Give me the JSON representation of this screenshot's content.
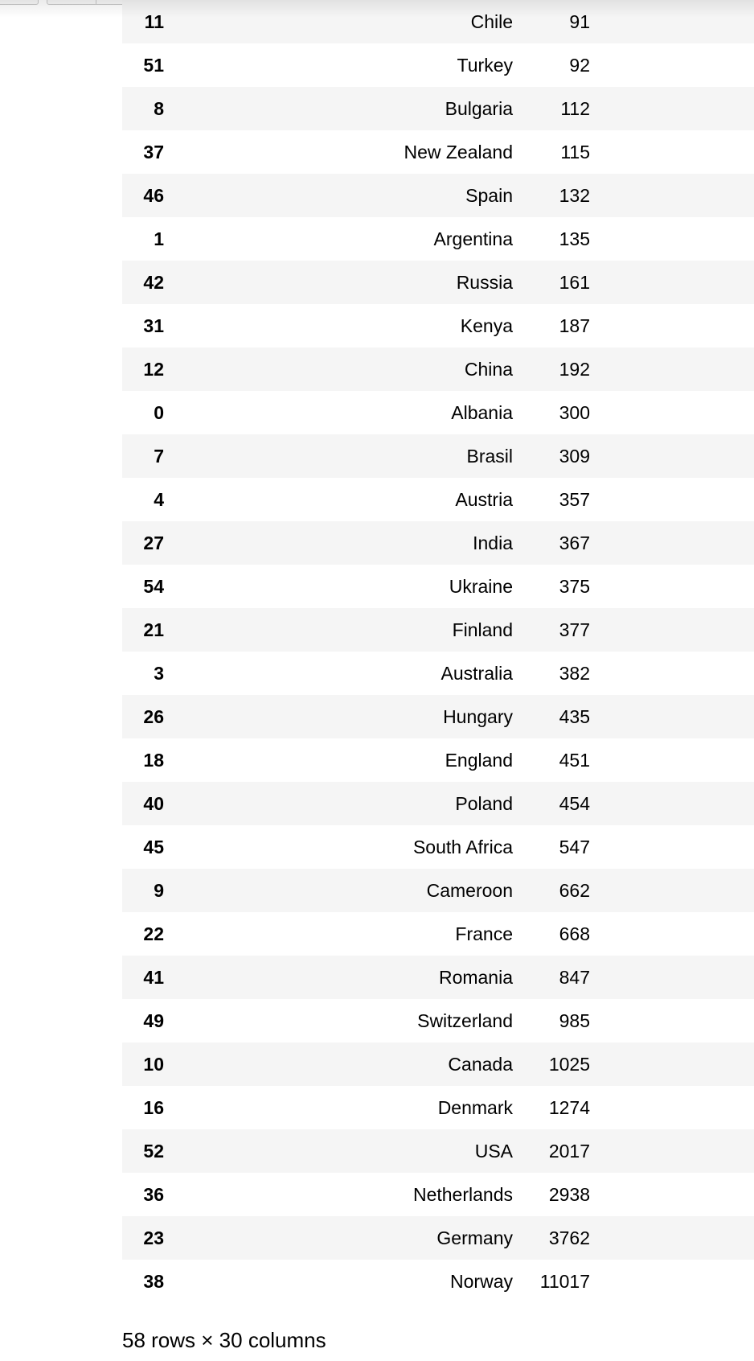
{
  "table": {
    "rows": [
      {
        "index": "11",
        "country": "Chile",
        "value": "91"
      },
      {
        "index": "51",
        "country": "Turkey",
        "value": "92"
      },
      {
        "index": "8",
        "country": "Bulgaria",
        "value": "112"
      },
      {
        "index": "37",
        "country": "New Zealand",
        "value": "115"
      },
      {
        "index": "46",
        "country": "Spain",
        "value": "132"
      },
      {
        "index": "1",
        "country": "Argentina",
        "value": "135"
      },
      {
        "index": "42",
        "country": "Russia",
        "value": "161"
      },
      {
        "index": "31",
        "country": "Kenya",
        "value": "187"
      },
      {
        "index": "12",
        "country": "China",
        "value": "192"
      },
      {
        "index": "0",
        "country": "Albania",
        "value": "300"
      },
      {
        "index": "7",
        "country": "Brasil",
        "value": "309"
      },
      {
        "index": "4",
        "country": "Austria",
        "value": "357"
      },
      {
        "index": "27",
        "country": "India",
        "value": "367"
      },
      {
        "index": "54",
        "country": "Ukraine",
        "value": "375"
      },
      {
        "index": "21",
        "country": "Finland",
        "value": "377"
      },
      {
        "index": "3",
        "country": "Australia",
        "value": "382"
      },
      {
        "index": "26",
        "country": "Hungary",
        "value": "435"
      },
      {
        "index": "18",
        "country": "England",
        "value": "451"
      },
      {
        "index": "40",
        "country": "Poland",
        "value": "454"
      },
      {
        "index": "45",
        "country": "South Africa",
        "value": "547"
      },
      {
        "index": "9",
        "country": "Cameroon",
        "value": "662"
      },
      {
        "index": "22",
        "country": "France",
        "value": "668"
      },
      {
        "index": "41",
        "country": "Romania",
        "value": "847"
      },
      {
        "index": "49",
        "country": "Switzerland",
        "value": "985"
      },
      {
        "index": "10",
        "country": "Canada",
        "value": "1025"
      },
      {
        "index": "16",
        "country": "Denmark",
        "value": "1274"
      },
      {
        "index": "52",
        "country": "USA",
        "value": "2017"
      },
      {
        "index": "36",
        "country": "Netherlands",
        "value": "2938"
      },
      {
        "index": "23",
        "country": "Germany",
        "value": "3762"
      },
      {
        "index": "38",
        "country": "Norway",
        "value": "11017"
      }
    ]
  },
  "summary": "58 rows × 30 columns"
}
